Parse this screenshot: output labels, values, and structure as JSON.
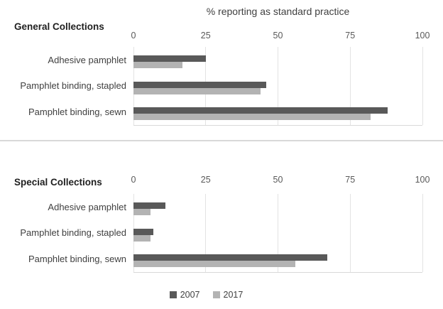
{
  "title": "% reporting as standard practice",
  "colors": {
    "series_2007": "#595959",
    "series_2017": "#b3b3b3",
    "gridline": "#e3e3e3",
    "axis_line": "#d9d9d9",
    "divider": "#d9d9d9",
    "title_text": "#404040",
    "header_text": "#1f1f1f",
    "tick_text": "#595959"
  },
  "axis": {
    "min": 0,
    "max": 100,
    "ticks": [
      "0",
      "25",
      "50",
      "75",
      "100"
    ]
  },
  "legend": {
    "items": [
      {
        "label": "2007",
        "color": "#595959"
      },
      {
        "label": "2017",
        "color": "#b3b3b3"
      }
    ]
  },
  "chart_data": [
    {
      "type": "bar",
      "orientation": "horizontal",
      "title": "General Collections",
      "xlabel": "% reporting as standard practice",
      "xlim": [
        0,
        100
      ],
      "grid": true,
      "categories": [
        "Adhesive pamphlet",
        "Pamphlet binding, stapled",
        "Pamphlet binding, sewn"
      ],
      "series": [
        {
          "name": "2007",
          "values": [
            25,
            46,
            88
          ]
        },
        {
          "name": "2017",
          "values": [
            17,
            44,
            82
          ]
        }
      ]
    },
    {
      "type": "bar",
      "orientation": "horizontal",
      "title": "Special Collections",
      "xlabel": "% reporting as standard practice",
      "xlim": [
        0,
        100
      ],
      "grid": true,
      "categories": [
        "Adhesive pamphlet",
        "Pamphlet binding, stapled",
        "Pamphlet binding, sewn"
      ],
      "series": [
        {
          "name": "2007",
          "values": [
            11,
            7,
            67
          ]
        },
        {
          "name": "2017",
          "values": [
            6,
            6,
            56
          ]
        }
      ]
    }
  ]
}
